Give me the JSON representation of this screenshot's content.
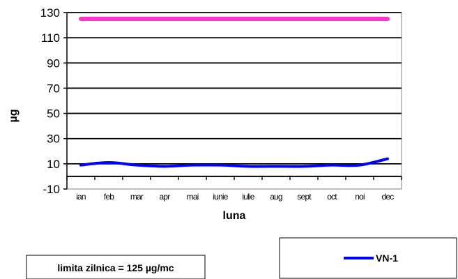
{
  "chart_data": {
    "type": "line",
    "title": "",
    "xlabel": "luna",
    "ylabel": "µg",
    "categories": [
      "ian",
      "feb",
      "mar",
      "apr",
      "mai",
      "iunie",
      "iulie",
      "aug",
      "sept",
      "oct",
      "noi",
      "dec"
    ],
    "ylim": [
      -10,
      130
    ],
    "yticks": [
      -10,
      10,
      30,
      50,
      70,
      90,
      110,
      130
    ],
    "grid": true,
    "series": [
      {
        "name": "limita zilnica = 125 µg/mc",
        "color": "#ff33cc",
        "values": [
          125,
          125,
          125,
          125,
          125,
          125,
          125,
          125,
          125,
          125,
          125,
          125
        ]
      },
      {
        "name": "VN-1",
        "color": "#0000ff",
        "values": [
          9,
          11,
          9,
          8,
          9,
          9,
          8,
          8,
          8,
          9,
          9,
          14
        ]
      }
    ],
    "legend": [
      "bottom-left",
      "bottom-right"
    ]
  }
}
